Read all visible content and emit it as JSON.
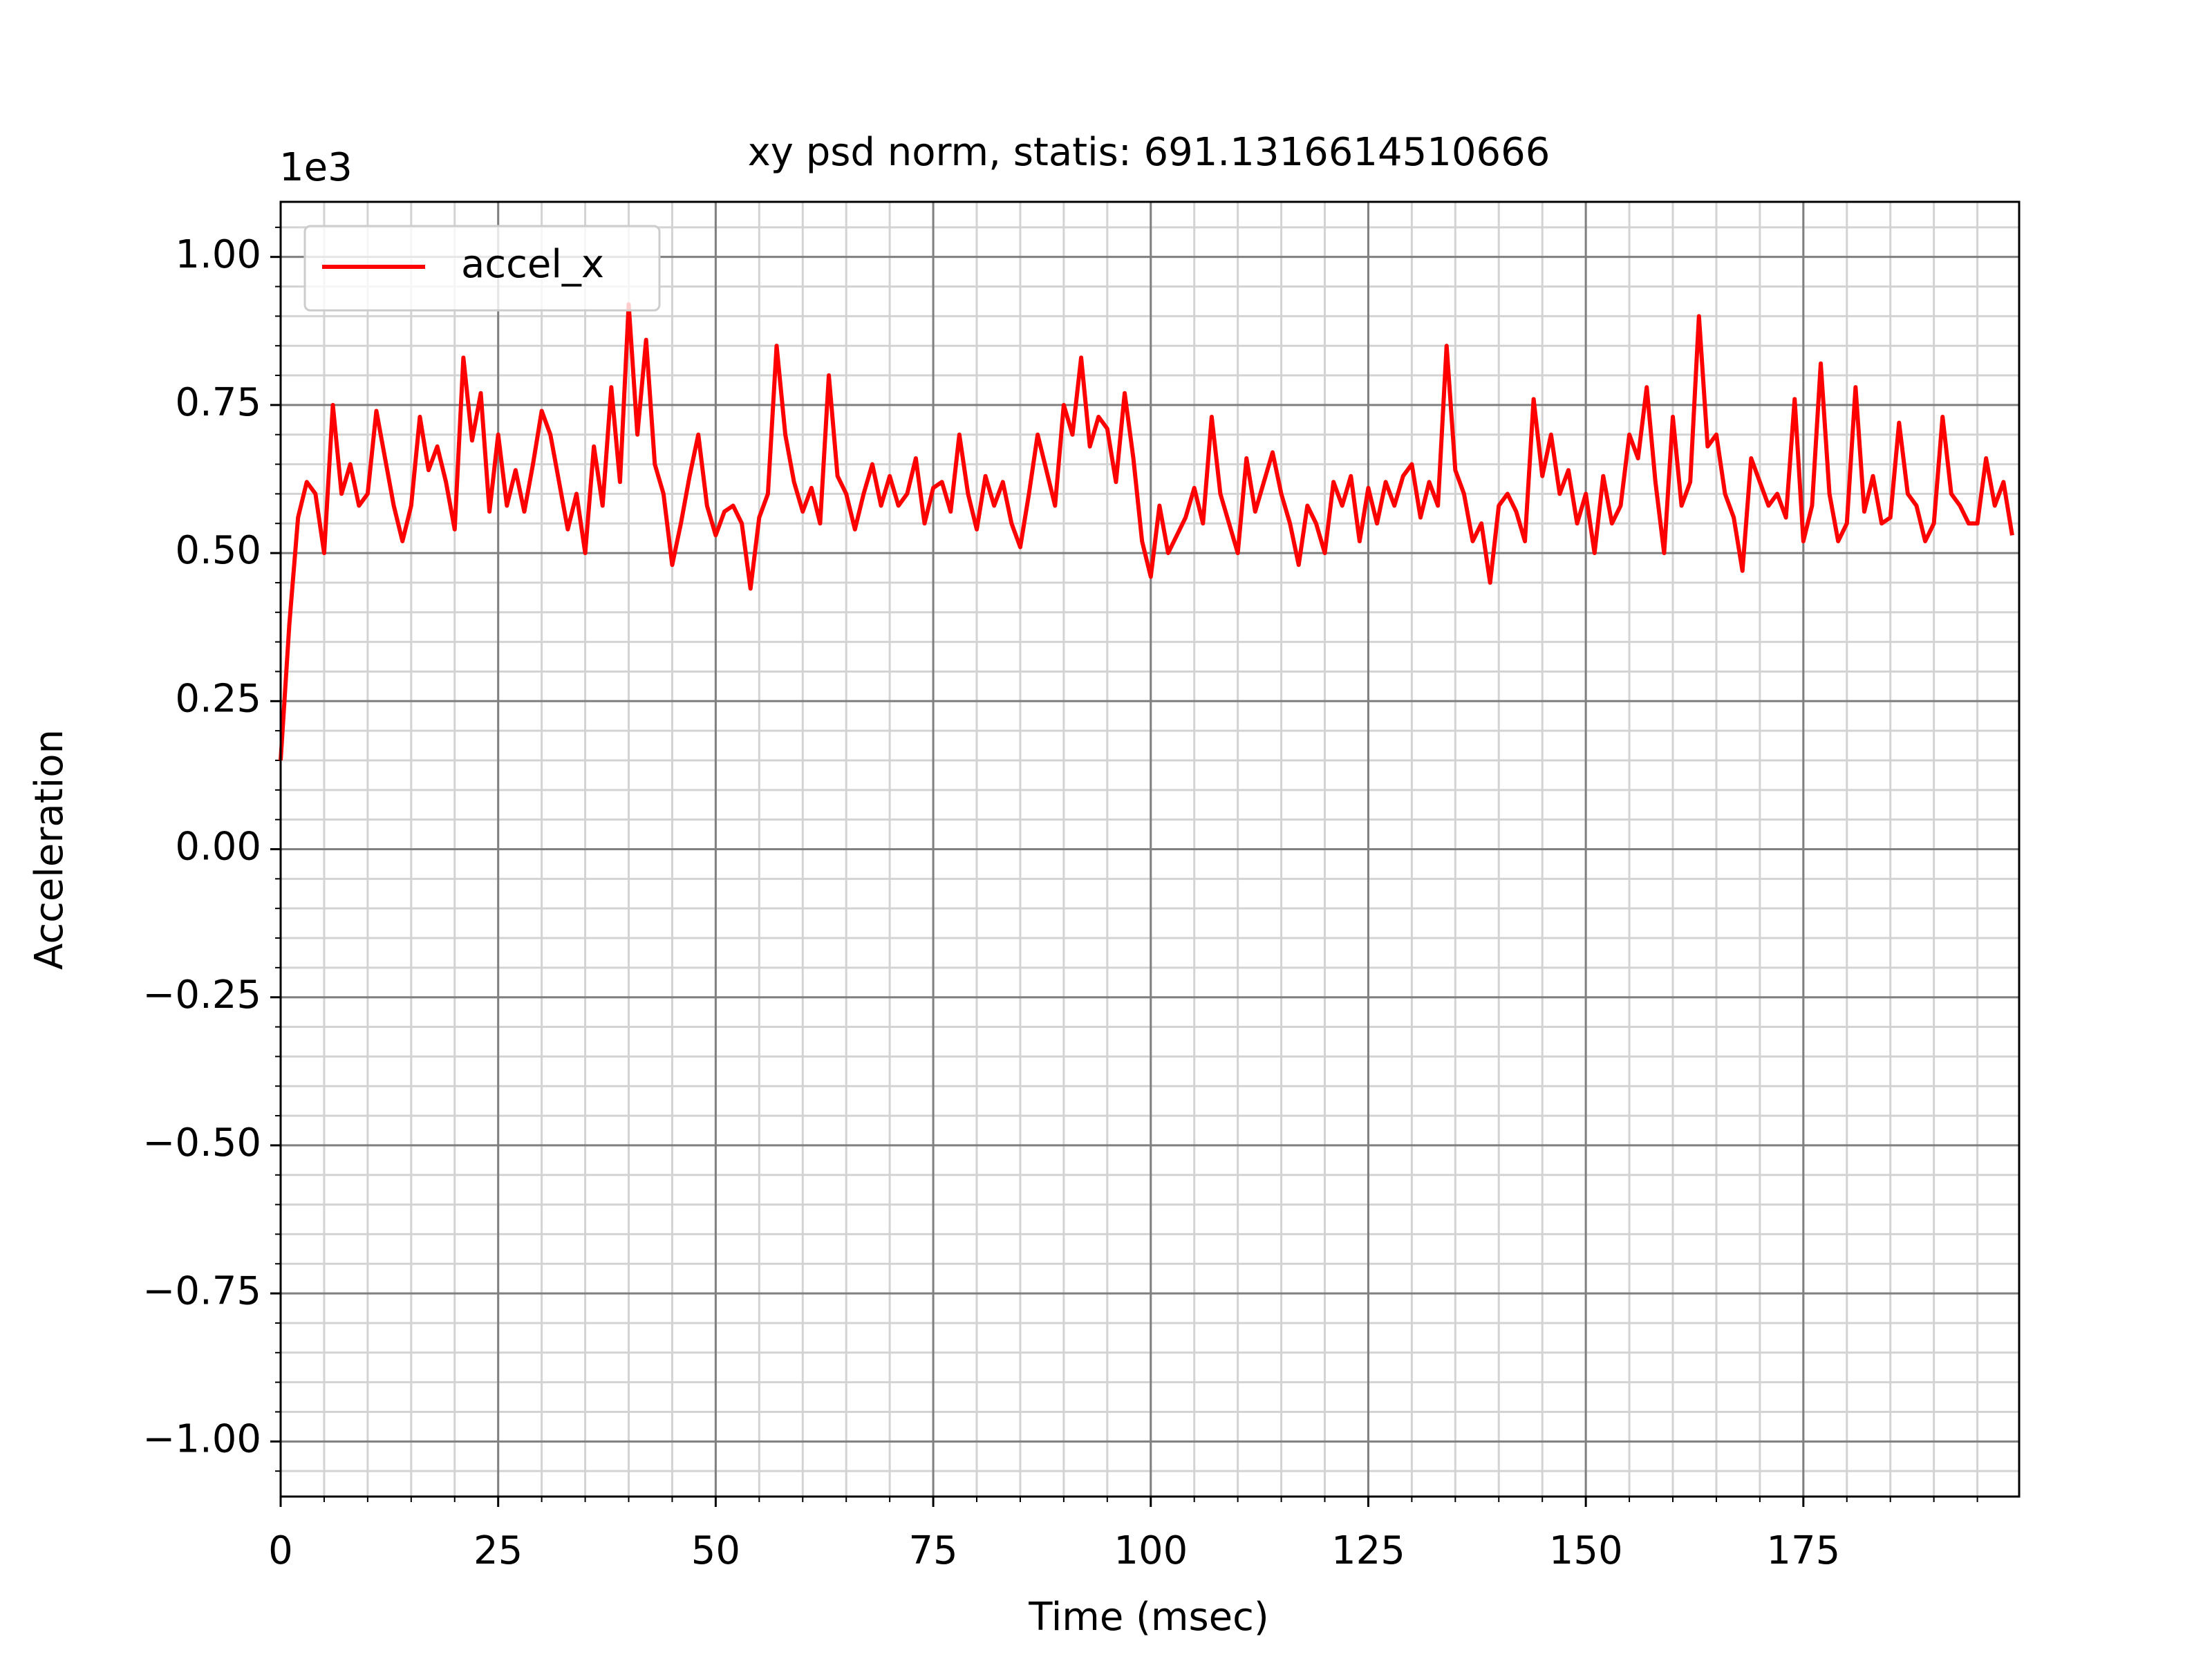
{
  "chart_data": {
    "type": "line",
    "title": "xy psd norm, statis: 691.1316614510666",
    "x_label": "Time (msec)",
    "y_label": "Acceleration",
    "y_offset_label": "1e3",
    "legend": "upper left",
    "grid": true,
    "minor_grid": true,
    "xlim": [
      0,
      199.8
    ],
    "ylim": [
      -1.093,
      1.093
    ],
    "xticks": [
      0,
      25,
      50,
      75,
      100,
      125,
      150,
      175
    ],
    "yticks": [
      {
        "value": -1,
        "label": "−1.00"
      },
      {
        "value": -0.75,
        "label": "−0.75"
      },
      {
        "value": -0.5,
        "label": "−0.50"
      },
      {
        "value": -0.25,
        "label": "−0.25"
      },
      {
        "value": 0,
        "label": "0.00"
      },
      {
        "value": 0.25,
        "label": "0.25"
      },
      {
        "value": 0.5,
        "label": "0.50"
      },
      {
        "value": 0.75,
        "label": "0.75"
      },
      {
        "value": 1,
        "label": "1.00"
      }
    ],
    "x": [
      0,
      1,
      2,
      3,
      4,
      5,
      6,
      7,
      8,
      9,
      10,
      11,
      12,
      13,
      14,
      15,
      16,
      17,
      18,
      19,
      20,
      21,
      22,
      23,
      24,
      25,
      26,
      27,
      28,
      29,
      30,
      31,
      32,
      33,
      34,
      35,
      36,
      37,
      38,
      39,
      40,
      41,
      42,
      43,
      44,
      45,
      46,
      47,
      48,
      49,
      50,
      51,
      52,
      53,
      54,
      55,
      56,
      57,
      58,
      59,
      60,
      61,
      62,
      63,
      64,
      65,
      66,
      67,
      68,
      69,
      70,
      71,
      72,
      73,
      74,
      75,
      76,
      77,
      78,
      79,
      80,
      81,
      82,
      83,
      84,
      85,
      86,
      87,
      88,
      89,
      90,
      91,
      92,
      93,
      94,
      95,
      96,
      97,
      98,
      99,
      100,
      101,
      102,
      103,
      104,
      105,
      106,
      107,
      108,
      109,
      110,
      111,
      112,
      113,
      114,
      115,
      116,
      117,
      118,
      119,
      120,
      121,
      122,
      123,
      124,
      125,
      126,
      127,
      128,
      129,
      130,
      131,
      132,
      133,
      134,
      135,
      136,
      137,
      138,
      139,
      140,
      141,
      142,
      143,
      144,
      145,
      146,
      147,
      148,
      149,
      150,
      151,
      152,
      153,
      154,
      155,
      156,
      157,
      158,
      159,
      160,
      161,
      162,
      163,
      164,
      165,
      166,
      167,
      168,
      169,
      170,
      171,
      172,
      173,
      174,
      175,
      176,
      177,
      178,
      179,
      180,
      181,
      182,
      183,
      184,
      185,
      186,
      187,
      188,
      189,
      190,
      191,
      192,
      193,
      194,
      195,
      196,
      197,
      198,
      199
    ],
    "series": [
      {
        "name": "accel_x",
        "color": "#ff0000",
        "values": [
          0.15,
          0.38,
          0.56,
          0.62,
          0.6,
          0.5,
          0.75,
          0.6,
          0.65,
          0.58,
          0.6,
          0.74,
          0.66,
          0.58,
          0.52,
          0.58,
          0.73,
          0.64,
          0.68,
          0.62,
          0.54,
          0.83,
          0.69,
          0.77,
          0.57,
          0.7,
          0.58,
          0.64,
          0.57,
          0.65,
          0.74,
          0.7,
          0.62,
          0.54,
          0.6,
          0.5,
          0.68,
          0.58,
          0.78,
          0.62,
          0.92,
          0.7,
          0.86,
          0.65,
          0.6,
          0.48,
          0.55,
          0.63,
          0.7,
          0.58,
          0.53,
          0.57,
          0.58,
          0.55,
          0.44,
          0.56,
          0.6,
          0.85,
          0.7,
          0.62,
          0.57,
          0.61,
          0.55,
          0.8,
          0.63,
          0.6,
          0.54,
          0.6,
          0.65,
          0.58,
          0.63,
          0.58,
          0.6,
          0.66,
          0.55,
          0.61,
          0.62,
          0.57,
          0.7,
          0.6,
          0.54,
          0.63,
          0.58,
          0.62,
          0.55,
          0.51,
          0.6,
          0.7,
          0.64,
          0.58,
          0.75,
          0.7,
          0.83,
          0.68,
          0.73,
          0.71,
          0.62,
          0.77,
          0.66,
          0.52,
          0.46,
          0.58,
          0.5,
          0.53,
          0.56,
          0.61,
          0.55,
          0.73,
          0.6,
          0.55,
          0.5,
          0.66,
          0.57,
          0.62,
          0.67,
          0.6,
          0.55,
          0.48,
          0.58,
          0.55,
          0.5,
          0.62,
          0.58,
          0.63,
          0.52,
          0.61,
          0.55,
          0.62,
          0.58,
          0.63,
          0.65,
          0.56,
          0.62,
          0.58,
          0.85,
          0.64,
          0.6,
          0.52,
          0.55,
          0.45,
          0.58,
          0.6,
          0.57,
          0.52,
          0.76,
          0.63,
          0.7,
          0.6,
          0.64,
          0.55,
          0.6,
          0.5,
          0.63,
          0.55,
          0.58,
          0.7,
          0.66,
          0.78,
          0.62,
          0.5,
          0.73,
          0.58,
          0.62,
          0.9,
          0.68,
          0.7,
          0.6,
          0.56,
          0.47,
          0.66,
          0.62,
          0.58,
          0.6,
          0.56,
          0.76,
          0.52,
          0.58,
          0.82,
          0.6,
          0.52,
          0.55,
          0.78,
          0.57,
          0.63,
          0.55,
          0.56,
          0.72,
          0.6,
          0.58,
          0.52,
          0.55,
          0.73,
          0.6,
          0.58,
          0.55,
          0.55,
          0.66,
          0.58,
          0.62,
          0.53
        ]
      }
    ]
  }
}
